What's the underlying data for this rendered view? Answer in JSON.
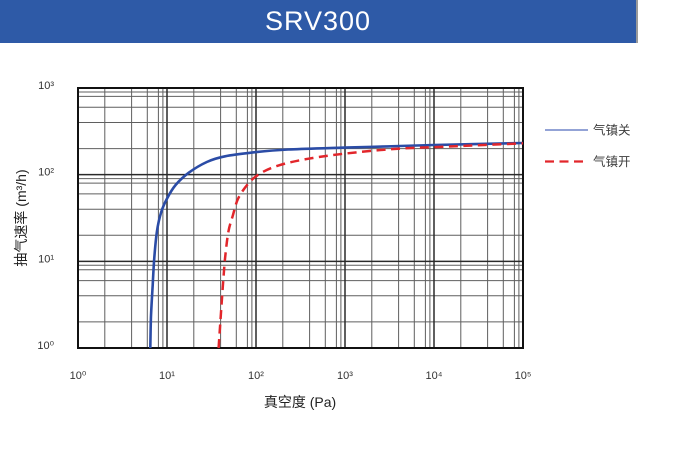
{
  "header": {
    "title": "SRV300",
    "bg_color": "#2e5aa7",
    "text_color": "#ffffff"
  },
  "chart_data": {
    "type": "line",
    "x_scale": "log",
    "y_scale": "log",
    "xlabel": "真空度 (Pa)",
    "ylabel": "抽气速率 (m³/h)",
    "xlim": [
      1,
      100000
    ],
    "ylim": [
      1,
      1000
    ],
    "x_ticks": [
      "10⁰",
      "10¹",
      "10²",
      "10³",
      "10⁴",
      "10⁵"
    ],
    "y_ticks": [
      "10⁰",
      "10¹",
      "10²",
      "10³"
    ],
    "minor_grid_multiples": [
      2,
      4,
      6,
      8,
      9
    ],
    "grid": true,
    "legend_position": "right-outside",
    "colors": {
      "grid_major": "#2a2a2a",
      "grid_minor": "#5f5f5f",
      "frame": "#111111"
    },
    "series": [
      {
        "name": "气镇关",
        "style": "solid",
        "color": "#2b4ca6",
        "legend_color": "#93a3d6",
        "points": [
          [
            6.5,
            1
          ],
          [
            6.6,
            2.2
          ],
          [
            6.9,
            5.3
          ],
          [
            7.2,
            11
          ],
          [
            7.7,
            22
          ],
          [
            8.6,
            37
          ],
          [
            10,
            53
          ],
          [
            12.5,
            76
          ],
          [
            17.5,
            105
          ],
          [
            28,
            140
          ],
          [
            45,
            163
          ],
          [
            100,
            182
          ],
          [
            230,
            195
          ],
          [
            1000,
            205
          ],
          [
            3000,
            212
          ],
          [
            10000,
            220
          ],
          [
            100000,
            232
          ]
        ]
      },
      {
        "name": "气镇开",
        "style": "dashed",
        "color": "#e2262b",
        "legend_color": "#e2262b",
        "points": [
          [
            38,
            1
          ],
          [
            40,
            2.2
          ],
          [
            42.5,
            5.3
          ],
          [
            45,
            11
          ],
          [
            49,
            22
          ],
          [
            55,
            34
          ],
          [
            63,
            53
          ],
          [
            82,
            79
          ],
          [
            111,
            103
          ],
          [
            180,
            128
          ],
          [
            390,
            153
          ],
          [
            1000,
            175
          ],
          [
            3350,
            197
          ],
          [
            10000,
            208
          ],
          [
            30000,
            218
          ],
          [
            100000,
            230
          ]
        ]
      }
    ]
  }
}
